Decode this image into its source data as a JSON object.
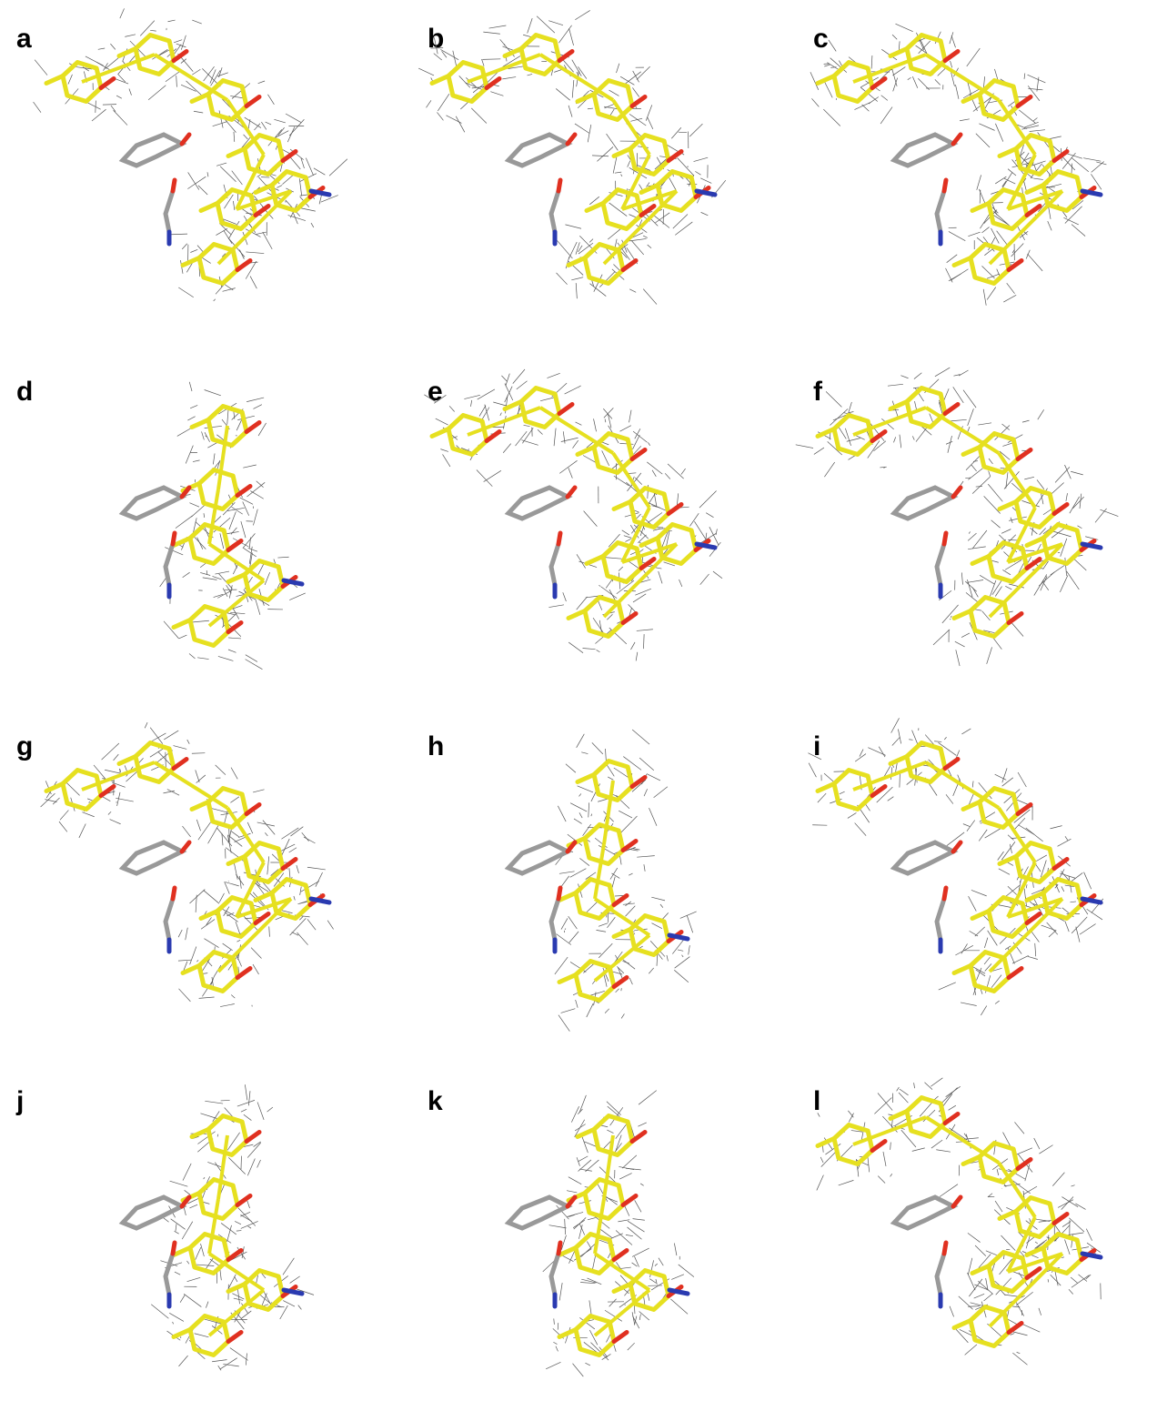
{
  "panels": [
    {
      "label": "a"
    },
    {
      "label": "b"
    },
    {
      "label": "c"
    },
    {
      "label": "d"
    },
    {
      "label": "e"
    },
    {
      "label": "f"
    },
    {
      "label": "g"
    },
    {
      "label": "h"
    },
    {
      "label": "i"
    },
    {
      "label": "j"
    },
    {
      "label": "k"
    },
    {
      "label": "l"
    }
  ]
}
